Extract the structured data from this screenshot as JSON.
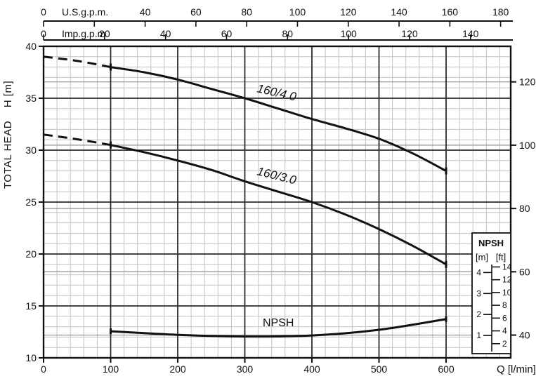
{
  "axes": {
    "x_bottom": {
      "title": "Q [l/min]",
      "tick_labels": [
        0,
        100,
        200,
        300,
        400,
        500,
        600
      ],
      "unit": "l/min"
    },
    "x_top_us": {
      "title": "U.S.g.p.m.",
      "tick_values": [
        0,
        20,
        40,
        60,
        80,
        100,
        120,
        140,
        160,
        180
      ],
      "labeled_values": [
        0,
        40,
        60,
        80,
        100,
        120,
        140,
        160,
        180
      ],
      "lpm_per_unit": 3.785
    },
    "x_top_imp": {
      "title": "Imp.g.p.m.",
      "tick_values": [
        0,
        20,
        40,
        60,
        80,
        100,
        120,
        140
      ],
      "labeled_values": [
        0,
        20,
        40,
        60,
        80,
        100,
        120,
        140
      ],
      "lpm_per_unit": 4.546
    },
    "y_left": {
      "title": "TOTAL HEAD    H [m]",
      "tick_labels": [
        10,
        15,
        20,
        25,
        30,
        35,
        40
      ]
    },
    "y_right": {
      "unit": "ft",
      "tick_labels": [
        40,
        60,
        80,
        100,
        120
      ],
      "m_per_ft": 0.3048
    }
  },
  "chart_data": {
    "type": "line",
    "title": "",
    "xlabel": "Q [l/min]",
    "ylabel": "TOTAL HEAD H [m]",
    "xlim": [
      0,
      696
    ],
    "ylim": [
      10,
      40
    ],
    "grid": "on",
    "series": [
      {
        "name": "160/4.0",
        "style": "solid",
        "x": [
          100,
          150,
          200,
          250,
          300,
          350,
          400,
          450,
          500,
          550,
          600
        ],
        "y": [
          38,
          37.5,
          36.8,
          35.9,
          35,
          34,
          33,
          32.1,
          31.1,
          29.7,
          28
        ],
        "dashed_extension": {
          "x": [
            0,
            50,
            100
          ],
          "y": [
            39,
            38.6,
            38
          ]
        },
        "end_caps": true
      },
      {
        "name": "160/3.0",
        "style": "solid",
        "x": [
          100,
          150,
          200,
          250,
          300,
          350,
          400,
          450,
          500,
          550,
          600
        ],
        "y": [
          30.5,
          29.8,
          29,
          28.1,
          27,
          26,
          25,
          23.8,
          22.4,
          20.8,
          19
        ],
        "dashed_extension": {
          "x": [
            0,
            50,
            100
          ],
          "y": [
            31.5,
            31.05,
            30.5
          ]
        },
        "end_caps": true
      },
      {
        "name": "NPSH",
        "style": "solid",
        "value_axis": "npsh_m",
        "x": [
          100,
          200,
          300,
          400,
          500,
          600
        ],
        "y": [
          1.2,
          1.03,
          0.95,
          1.0,
          1.27,
          1.78
        ],
        "end_caps": true
      }
    ]
  },
  "legend_npsh": {
    "title": "NPSH",
    "unit_m": "[m]",
    "unit_ft": "[ft]",
    "m_ticks": [
      1,
      2,
      3,
      4
    ],
    "ft_ticks": [
      2,
      4,
      6,
      8,
      10,
      12,
      14
    ]
  },
  "colors": {
    "curve": "#111111",
    "grid_minor": "#c3c3c3",
    "grid_medium": "#8f8f8f",
    "grid_major": "#2b2b2b",
    "frame": "#111111",
    "text": "#111111",
    "background": "#ffffff"
  }
}
